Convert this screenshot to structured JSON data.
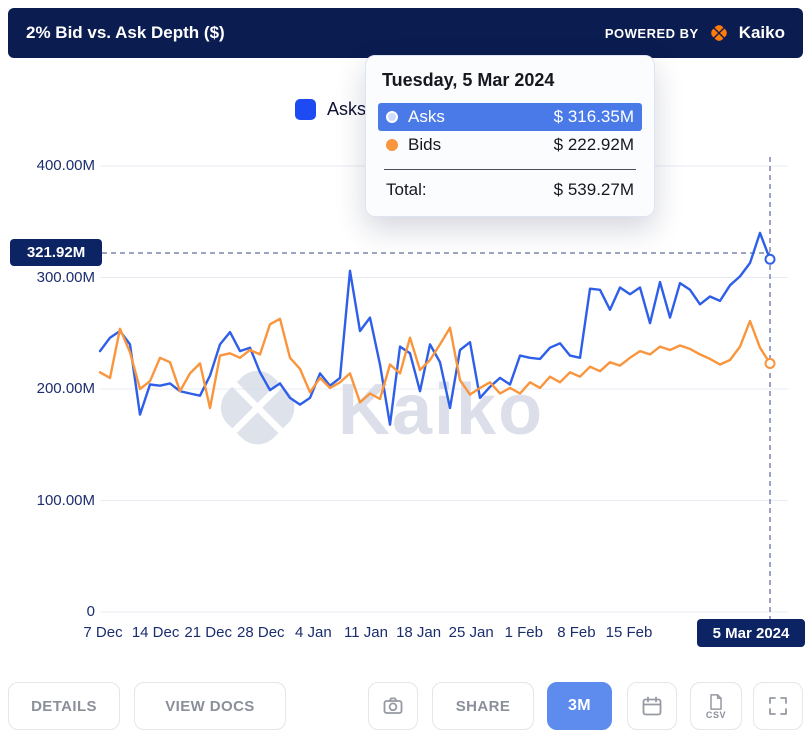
{
  "header": {
    "title": "2% Bid vs. Ask Depth ($)",
    "powered_by": "POWERED BY",
    "brand": "Kaiko",
    "background_color": "#0b1c50",
    "logo_color": "#ff7c0a"
  },
  "legend": {
    "items": [
      {
        "label": "Asks",
        "color": "#1d4af2"
      }
    ]
  },
  "tooltip": {
    "date": "Tuesday, 5 Mar 2024",
    "rows": [
      {
        "label": "Asks",
        "value": "$ 316.35M",
        "highlighted": true,
        "color": "#4a7ae8"
      },
      {
        "label": "Bids",
        "value": "$ 222.92M",
        "highlighted": false,
        "color": "#f9953c"
      }
    ],
    "total_label": "Total:",
    "total_value": "$ 539.27M"
  },
  "watermark": {
    "text": "Kaiko"
  },
  "chart_data": {
    "type": "line",
    "title": "2% Bid vs. Ask Depth ($)",
    "x_ticks": [
      "7 Dec",
      "14 Dec",
      "21 Dec",
      "28 Dec",
      "4 Jan",
      "11 Jan",
      "18 Jan",
      "25 Jan",
      "1 Feb",
      "8 Feb",
      "15 Feb"
    ],
    "y_ticks": [
      "400.00M",
      "300.00M",
      "200.00M",
      "100.00M",
      "0"
    ],
    "ylim": [
      0,
      400
    ],
    "unit": "M USD",
    "grid": "horizontal",
    "legend_position": "top-center",
    "highlight": {
      "label": "321.92M",
      "value": 321.92,
      "date": "5 Mar 2024"
    },
    "series": [
      {
        "name": "Asks",
        "color": "#2e5fe8",
        "end_value": 316.35,
        "values": [
          234,
          246,
          252,
          240,
          177,
          204,
          203,
          205,
          198,
          196,
          194,
          212,
          240,
          251,
          234,
          237,
          215,
          199,
          205,
          192,
          186,
          192,
          214,
          203,
          210,
          306,
          252,
          264,
          222,
          168,
          238,
          232,
          198,
          240,
          224,
          183,
          235,
          242,
          192,
          202,
          210,
          204,
          230,
          228,
          227,
          237,
          241,
          230,
          228,
          290,
          289,
          271,
          291,
          285,
          291,
          259,
          296,
          264,
          295,
          289,
          276,
          283,
          279,
          293,
          301,
          313,
          340,
          316.35
        ]
      },
      {
        "name": "Bids",
        "color": "#f9953c",
        "end_value": 222.92,
        "values": [
          215,
          210,
          254,
          233,
          200,
          207,
          228,
          224,
          198,
          214,
          223,
          183,
          230,
          232,
          228,
          235,
          231,
          258,
          263,
          228,
          218,
          197,
          210,
          201,
          206,
          214,
          188,
          196,
          191,
          222,
          214,
          246,
          217,
          226,
          240,
          255,
          208,
          195,
          201,
          206,
          196,
          201,
          196,
          206,
          201,
          211,
          206,
          215,
          211,
          220,
          216,
          224,
          221,
          228,
          234,
          231,
          238,
          235,
          239,
          236,
          231,
          227,
          222,
          226,
          238,
          261,
          237,
          222.92
        ]
      }
    ]
  },
  "toolbar": {
    "details_label": "DETAILS",
    "view_docs_label": "VIEW DOCS",
    "share_label": "SHARE",
    "range_label": "3M",
    "csv_label": "CSV",
    "icons": [
      "camera-icon",
      "calendar-icon",
      "csv-icon",
      "expand-icon"
    ]
  }
}
